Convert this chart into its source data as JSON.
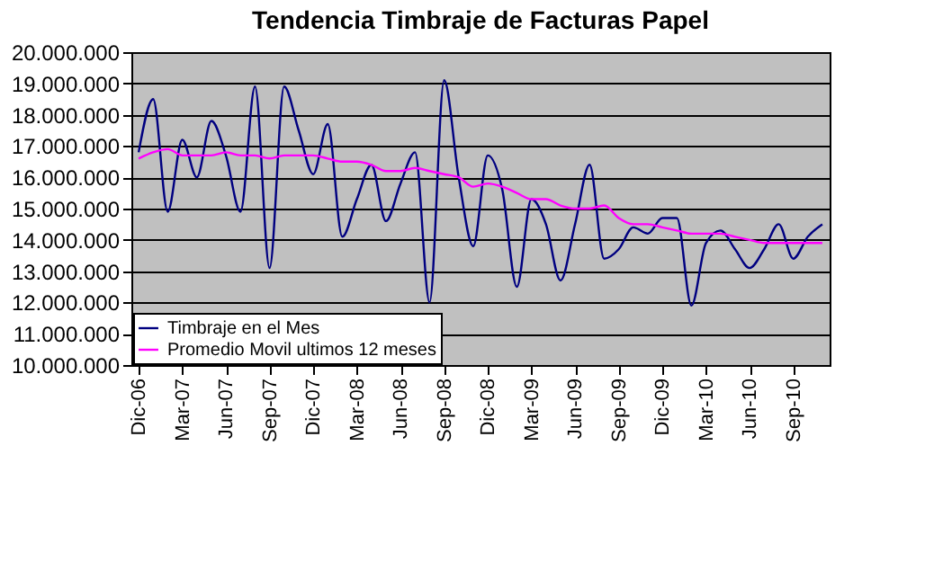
{
  "chart_data": {
    "type": "line",
    "title": "Tendencia Timbraje de Facturas Papel",
    "categories": [
      "Dic-06",
      null,
      null,
      "Mar-07",
      null,
      null,
      "Jun-07",
      null,
      null,
      "Sep-07",
      null,
      null,
      "Dic-07",
      null,
      null,
      "Mar-08",
      null,
      null,
      "Jun-08",
      null,
      null,
      "Sep-08",
      null,
      null,
      "Dic-08",
      null,
      null,
      "Mar-09",
      null,
      null,
      "Jun-09",
      null,
      null,
      "Sep-09",
      null,
      null,
      "Dic-09",
      null,
      null,
      "Mar-10",
      null,
      null,
      "Jun-10",
      null,
      null,
      "Sep-10",
      null,
      null
    ],
    "series": [
      {
        "name": "Timbraje en el Mes",
        "color": "#000080",
        "values": [
          16800000,
          18500000,
          14900000,
          17200000,
          16000000,
          17800000,
          16700000,
          14900000,
          18900000,
          13100000,
          18900000,
          17500000,
          16100000,
          17700000,
          14100000,
          15300000,
          16400000,
          14600000,
          15800000,
          16800000,
          12000000,
          19100000,
          16000000,
          13800000,
          16700000,
          15600000,
          12500000,
          15300000,
          14500000,
          12700000,
          14500000,
          16400000,
          13400000,
          13700000,
          14400000,
          14200000,
          14700000,
          14700000,
          11900000,
          13900000,
          14300000,
          13700000,
          13100000,
          13700000,
          14500000,
          13400000,
          14100000,
          14500000
        ]
      },
      {
        "name": "Promedio Movil ultimos 12 meses",
        "color": "#ff00ff",
        "values": [
          16600000,
          16800000,
          16900000,
          16700000,
          16700000,
          16700000,
          16800000,
          16700000,
          16700000,
          16600000,
          16700000,
          16700000,
          16700000,
          16600000,
          16500000,
          16500000,
          16400000,
          16200000,
          16200000,
          16300000,
          16200000,
          16100000,
          16000000,
          15700000,
          15800000,
          15700000,
          15500000,
          15300000,
          15300000,
          15100000,
          15000000,
          15000000,
          15100000,
          14700000,
          14500000,
          14500000,
          14400000,
          14300000,
          14200000,
          14200000,
          14200000,
          14100000,
          14000000,
          13900000,
          13900000,
          13900000,
          13900000,
          13900000
        ]
      }
    ],
    "ylim": [
      10000000,
      20000000
    ],
    "yticks": [
      {
        "value": 10000000,
        "label": "10.000.000"
      },
      {
        "value": 11000000,
        "label": "11.000.000"
      },
      {
        "value": 12000000,
        "label": "12.000.000"
      },
      {
        "value": 13000000,
        "label": "13.000.000"
      },
      {
        "value": 14000000,
        "label": "14.000.000"
      },
      {
        "value": 15000000,
        "label": "15.000.000"
      },
      {
        "value": 16000000,
        "label": "16.000.000"
      },
      {
        "value": 17000000,
        "label": "17.000.000"
      },
      {
        "value": 18000000,
        "label": "18.000.000"
      },
      {
        "value": 19000000,
        "label": "19.000.000"
      },
      {
        "value": 20000000,
        "label": "20.000.000"
      }
    ],
    "grid": "y",
    "legend": "bottom left",
    "marker": "none",
    "line_style": "solid"
  }
}
